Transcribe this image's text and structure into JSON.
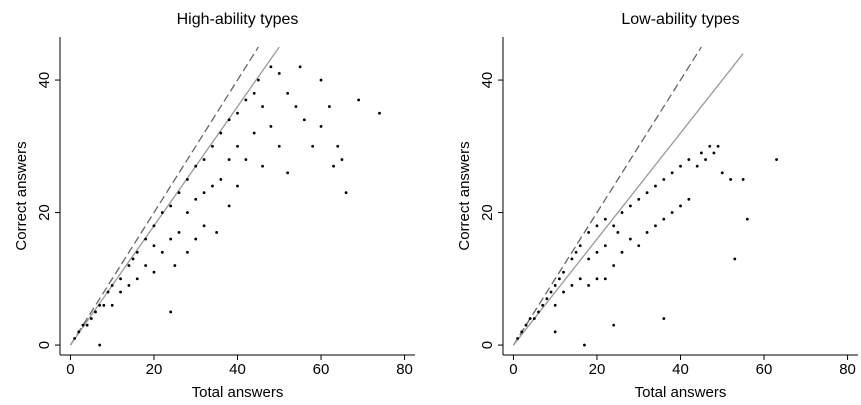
{
  "chart_data": [
    {
      "type": "scatter",
      "title": "High-ability types",
      "x_label": "Total answers",
      "y_label": "Correct answers",
      "xlim": [
        -2.5,
        82.5
      ],
      "ylim": [
        -1.5,
        46.5
      ],
      "xticks": [
        0,
        20,
        40,
        60,
        80
      ],
      "yticks": [
        0,
        20,
        40
      ],
      "color": "#000000",
      "x": [
        1,
        2,
        3,
        4,
        5,
        6,
        7,
        8,
        9,
        10,
        10,
        12,
        12,
        14,
        14,
        15,
        16,
        16,
        18,
        18,
        20,
        20,
        20,
        22,
        22,
        24,
        24,
        25,
        26,
        26,
        28,
        28,
        28,
        30,
        30,
        30,
        32,
        32,
        32,
        34,
        34,
        35,
        36,
        36,
        38,
        38,
        38,
        40,
        40,
        40,
        42,
        42,
        44,
        44,
        45,
        46,
        46,
        48,
        48,
        50,
        50,
        52,
        52,
        54,
        55,
        56,
        58,
        60,
        60,
        62,
        63,
        64,
        65,
        66,
        69,
        74,
        24,
        7
      ],
      "values": [
        1,
        2,
        3,
        3,
        4,
        5,
        6,
        6,
        8,
        9,
        6,
        10,
        8,
        12,
        9,
        13,
        14,
        10,
        16,
        12,
        18,
        15,
        11,
        20,
        14,
        21,
        16,
        12,
        23,
        17,
        25,
        20,
        14,
        27,
        22,
        16,
        28,
        23,
        18,
        30,
        24,
        17,
        32,
        25,
        34,
        28,
        21,
        35,
        30,
        24,
        37,
        28,
        38,
        32,
        40,
        36,
        27,
        42,
        33,
        41,
        30,
        38,
        26,
        36,
        42,
        34,
        30,
        33,
        40,
        36,
        27,
        30,
        28,
        23,
        37,
        35,
        5,
        0
      ],
      "lines": [
        {
          "x": [
            0,
            45
          ],
          "values": [
            0,
            45
          ],
          "style": "dashed",
          "color": "#666666"
        },
        {
          "x": [
            0,
            50
          ],
          "values": [
            0,
            45
          ],
          "style": "solid",
          "color": "#999999"
        }
      ]
    },
    {
      "type": "scatter",
      "title": "Low-ability types",
      "x_label": "Total answers",
      "y_label": "Correct answers",
      "xlim": [
        -2.5,
        82.5
      ],
      "ylim": [
        -1.5,
        46.5
      ],
      "xticks": [
        0,
        20,
        40,
        60,
        80
      ],
      "yticks": [
        0,
        20,
        40
      ],
      "color": "#000000",
      "x": [
        1,
        2,
        3,
        4,
        5,
        6,
        7,
        8,
        9,
        10,
        10,
        11,
        12,
        12,
        14,
        14,
        15,
        16,
        16,
        18,
        18,
        18,
        20,
        20,
        20,
        22,
        22,
        22,
        24,
        24,
        25,
        26,
        26,
        28,
        28,
        30,
        30,
        32,
        32,
        34,
        34,
        36,
        36,
        38,
        38,
        40,
        40,
        42,
        42,
        44,
        45,
        46,
        47,
        48,
        49,
        50,
        52,
        53,
        55,
        56,
        63,
        17,
        24,
        10,
        36
      ],
      "values": [
        1,
        2,
        3,
        4,
        4,
        5,
        6,
        7,
        8,
        9,
        6,
        10,
        11,
        8,
        13,
        9,
        14,
        15,
        10,
        17,
        13,
        9,
        18,
        14,
        10,
        19,
        15,
        10,
        18,
        12,
        17,
        20,
        14,
        21,
        16,
        22,
        15,
        23,
        17,
        24,
        18,
        25,
        19,
        26,
        20,
        27,
        21,
        28,
        22,
        27,
        29,
        28,
        30,
        29,
        30,
        26,
        25,
        13,
        25,
        19,
        28,
        0,
        3,
        2,
        4
      ],
      "lines": [
        {
          "x": [
            0,
            45
          ],
          "values": [
            0,
            45
          ],
          "style": "dashed",
          "color": "#666666"
        },
        {
          "x": [
            0,
            55
          ],
          "values": [
            0,
            44
          ],
          "style": "solid",
          "color": "#999999"
        }
      ]
    }
  ]
}
